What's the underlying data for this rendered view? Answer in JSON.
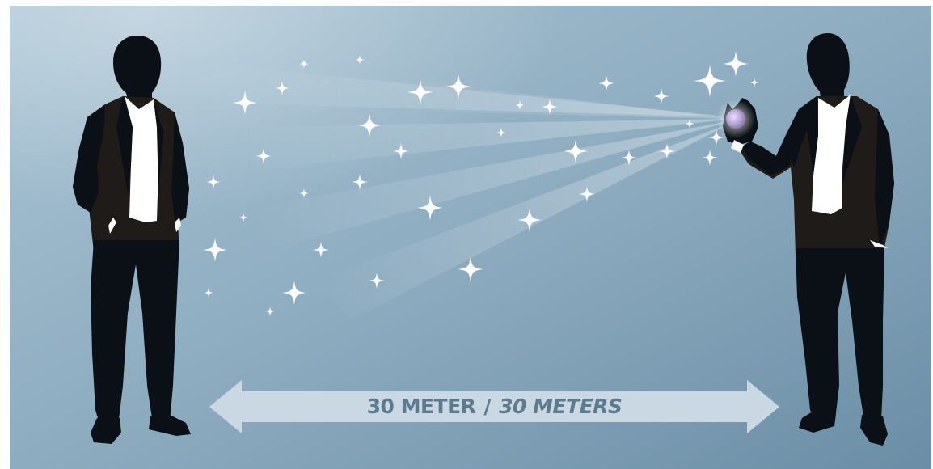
{
  "colors": {
    "background_light": "#a9c4d4",
    "background_dark": "#6b8ea6",
    "silhouette": "#0a1015",
    "jacket": "#1e1b19",
    "shirt": "#ffffff",
    "sparkle": "#ffffff",
    "arrow_fill": "#c9d8e2",
    "label": "#5d7b8f",
    "orb": "#b7a7d8"
  },
  "figures": {
    "left": {
      "icon": "standing-man-silhouette-icon",
      "pose": "hands in pockets"
    },
    "right": {
      "icon": "standing-man-silhouette-icon",
      "pose": "holding glowing orb"
    }
  },
  "orb_icon": "glowing-orb-icon",
  "sparkle_icon": "four-point-star-icon",
  "distance": {
    "value_primary": "30 METER",
    "separator": "/",
    "value_secondary": "30 METERS",
    "arrow_icon": "double-headed-arrow-icon"
  }
}
